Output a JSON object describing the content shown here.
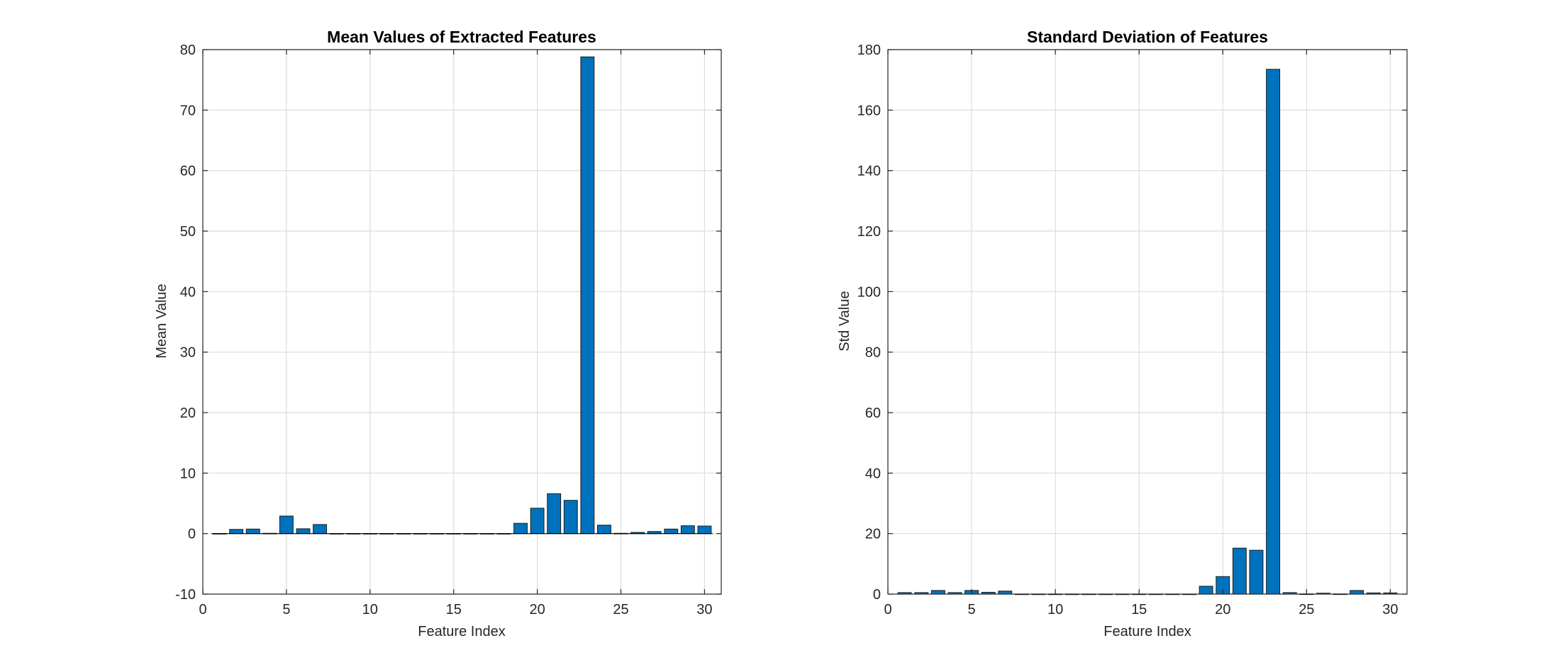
{
  "chart_data": [
    {
      "type": "bar",
      "title": "Mean Values of Extracted Features",
      "xlabel": "Feature Index",
      "ylabel": "Mean Value",
      "xlim": [
        0,
        31
      ],
      "ylim": [
        -10,
        80
      ],
      "xticks": [
        0,
        5,
        10,
        15,
        20,
        25,
        30
      ],
      "yticks": [
        -10,
        0,
        10,
        20,
        30,
        40,
        50,
        60,
        70,
        80
      ],
      "grid": true,
      "bar_color": "#0072BD",
      "x": [
        1,
        2,
        3,
        4,
        5,
        6,
        7,
        8,
        9,
        10,
        11,
        12,
        13,
        14,
        15,
        16,
        17,
        18,
        19,
        20,
        21,
        22,
        23,
        24,
        25,
        26,
        27,
        28,
        29,
        30
      ],
      "values": [
        0.02,
        0.7,
        0.75,
        0.05,
        2.9,
        0.8,
        1.5,
        0.02,
        0.02,
        0.02,
        0.02,
        0.02,
        0.02,
        0.02,
        0.02,
        0.02,
        0.02,
        0.02,
        1.7,
        4.2,
        6.6,
        5.5,
        78.8,
        1.4,
        0.05,
        0.2,
        0.35,
        0.75,
        1.3,
        1.25
      ]
    },
    {
      "type": "bar",
      "title": "Standard Deviation of Features",
      "xlabel": "Feature Index",
      "ylabel": "Std Value",
      "xlim": [
        0,
        31
      ],
      "ylim": [
        0,
        180
      ],
      "xticks": [
        0,
        5,
        10,
        15,
        20,
        25,
        30
      ],
      "yticks": [
        0,
        20,
        40,
        60,
        80,
        100,
        120,
        140,
        160,
        180
      ],
      "grid": true,
      "bar_color": "#0072BD",
      "x": [
        1,
        2,
        3,
        4,
        5,
        6,
        7,
        8,
        9,
        10,
        11,
        12,
        13,
        14,
        15,
        16,
        17,
        18,
        19,
        20,
        21,
        22,
        23,
        24,
        25,
        26,
        27,
        28,
        29,
        30
      ],
      "values": [
        0.5,
        0.5,
        1.2,
        0.5,
        1.2,
        0.6,
        1.0,
        0.02,
        0.02,
        0.02,
        0.02,
        0.02,
        0.02,
        0.02,
        0.02,
        0.02,
        0.02,
        0.02,
        2.6,
        5.8,
        15.2,
        14.5,
        173.5,
        0.5,
        0.05,
        0.3,
        0.05,
        1.2,
        0.4,
        0.4
      ]
    }
  ]
}
